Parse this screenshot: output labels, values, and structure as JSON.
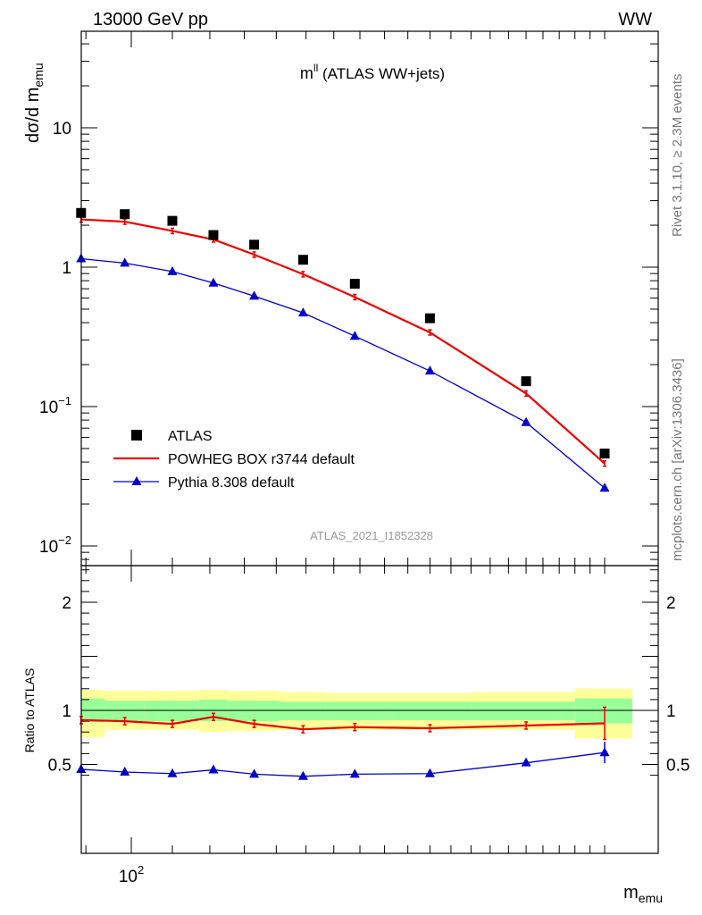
{
  "header": {
    "left": "13000 GeV pp",
    "right": "WW"
  },
  "side_labels": {
    "rivet": "Rivet 3.1.10, ≥ 2.3M events",
    "mcplots": "mcplots.cern.ch [arXiv:1306.3436]"
  },
  "chart_data": [
    {
      "type": "scatter",
      "panel": "main",
      "title_main": "m",
      "title_sup": "ll",
      "title_rest": " (ATLAS WW+jets)",
      "ylabel": "dσ/d m",
      "ylabel_sub": "emu",
      "yscale": "log",
      "ylim": [
        0.007,
        60
      ],
      "xscale": "log",
      "xlim": [
        85,
        300
      ],
      "y_ticks": [
        {
          "label_base": "10",
          "label_exp": "−2",
          "value": 0.01
        },
        {
          "label_base": "10",
          "label_exp": "−1",
          "value": 0.1
        },
        {
          "label_base": "1",
          "label_exp": "",
          "value": 1
        },
        {
          "label_base": "10",
          "label_exp": "",
          "value": 10
        }
      ],
      "watermark": "ATLAS_2021_I1852328",
      "legend_position": "bottom-left",
      "x": [
        89,
        98.5,
        110,
        121,
        133,
        149,
        168,
        200,
        250,
        300
      ],
      "series": [
        {
          "name": "ATLAS",
          "marker": "square",
          "color": "#000000",
          "values": [
            2.45,
            2.4,
            2.15,
            1.7,
            1.45,
            1.13,
            0.76,
            0.43,
            0.152,
            0.046
          ]
        },
        {
          "name": "POWHEG BOX r3744 default",
          "marker": "line-errorbar",
          "color": "#ee0000",
          "values": [
            2.2,
            2.12,
            1.82,
            1.58,
            1.23,
            0.89,
            0.61,
            0.34,
            0.124,
            0.039
          ]
        },
        {
          "name": "Pythia 8.308 default",
          "marker": "triangle",
          "color": "#0000cc",
          "values": [
            1.15,
            1.07,
            0.93,
            0.77,
            0.62,
            0.47,
            0.32,
            0.18,
            0.077,
            0.026
          ]
        }
      ]
    },
    {
      "type": "line",
      "panel": "ratio",
      "ylabel": "Ratio to ATLAS",
      "ylim": [
        0.35,
        2.35
      ],
      "y_ticks": [
        {
          "label": "0.5",
          "value": 0.5
        },
        {
          "label": "1",
          "value": 1
        },
        {
          "label": "2",
          "value": 2
        }
      ],
      "x_tick_label": "10",
      "x_tick_exp": "2",
      "x_tick_value": 100,
      "xlabel": "m",
      "xlabel_sub": "emu",
      "band_bins": [
        80.5,
        94,
        103,
        117,
        125,
        141,
        157,
        180,
        220,
        280,
        320
      ],
      "band_green": [
        [
          0.89,
          1.11
        ],
        [
          0.9,
          1.09
        ],
        [
          0.9,
          1.09
        ],
        [
          0.9,
          1.1
        ],
        [
          0.9,
          1.09
        ],
        [
          0.91,
          1.08
        ],
        [
          0.91,
          1.08
        ],
        [
          0.91,
          1.08
        ],
        [
          0.91,
          1.08
        ],
        [
          0.88,
          1.11
        ]
      ],
      "band_yellow": [
        [
          0.75,
          1.19
        ],
        [
          0.82,
          1.18
        ],
        [
          0.82,
          1.18
        ],
        [
          0.8,
          1.19
        ],
        [
          0.81,
          1.18
        ],
        [
          0.82,
          1.17
        ],
        [
          0.82,
          1.16
        ],
        [
          0.82,
          1.16
        ],
        [
          0.82,
          1.17
        ],
        [
          0.74,
          1.2
        ]
      ],
      "x": [
        89,
        98.5,
        110,
        121,
        133,
        149,
        168,
        200,
        250,
        300
      ],
      "series": [
        {
          "name": "POWHEG BOX r3744 default",
          "color": "#ee0000",
          "values": [
            0.91,
            0.9,
            0.875,
            0.94,
            0.875,
            0.825,
            0.845,
            0.835,
            0.86,
            0.88
          ]
        },
        {
          "name": "Pythia 8.308 default",
          "color": "#0000cc",
          "values": [
            0.455,
            0.43,
            0.415,
            0.45,
            0.41,
            0.39,
            0.41,
            0.415,
            0.515,
            0.61
          ]
        }
      ]
    }
  ]
}
